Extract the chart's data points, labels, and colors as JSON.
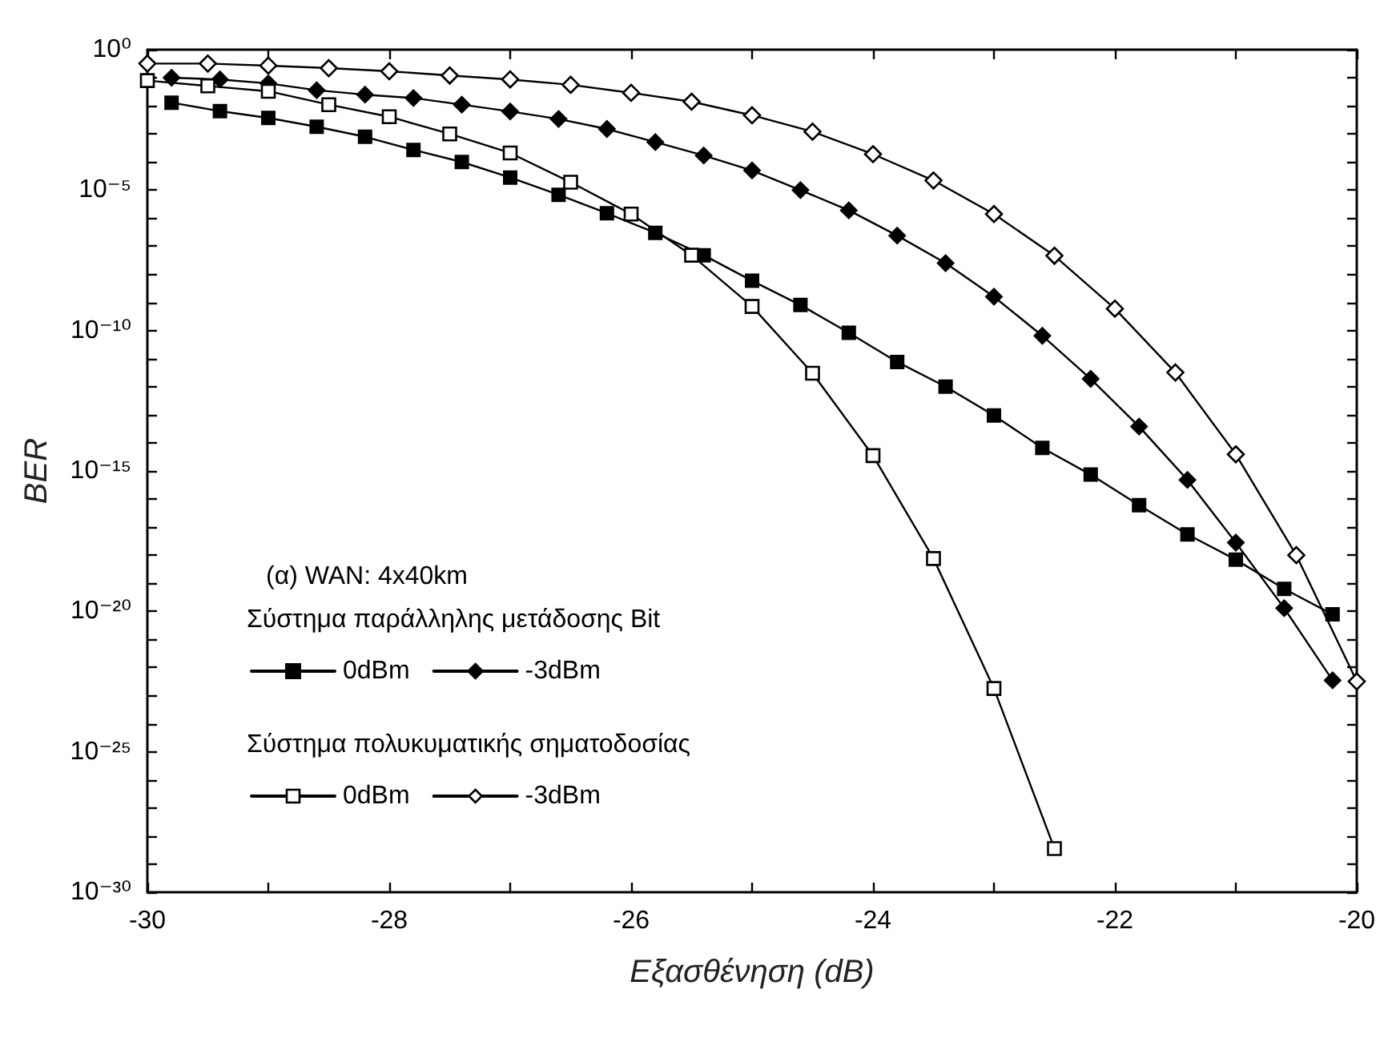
{
  "chart_data": {
    "type": "line",
    "xlabel": "Εξασθένηση (dB)",
    "ylabel": "BER",
    "annotations": [
      "(α) WAN: 4x40km",
      "Σύστημα παράλληλης μετάδοσης Bit",
      "Σύστημα πολυκυματικής σηματοδοσίας"
    ],
    "log": "y",
    "grid": false,
    "legend": "bottom left",
    "line_style": "solid",
    "xlim": [
      -30,
      -20
    ],
    "xticks": [
      -30,
      {
        "value": -29,
        "label": null
      },
      -28,
      {
        "value": -27,
        "label": null
      },
      -26,
      {
        "value": -25,
        "label": null
      },
      -24,
      {
        "value": -23,
        "label": null
      },
      -22,
      {
        "value": -21,
        "label": null
      },
      -20
    ],
    "ylim": [
      1e-30,
      1
    ],
    "yticks": [
      {
        "value": 1e-30,
        "label": "10⁻³⁰"
      },
      {
        "value": 1e-29,
        "label": null
      },
      {
        "value": 1e-28,
        "label": null
      },
      {
        "value": 1e-27,
        "label": null
      },
      {
        "value": 1e-26,
        "label": null
      },
      {
        "value": 1e-25,
        "label": "10⁻²⁵"
      },
      {
        "value": 1e-24,
        "label": null
      },
      {
        "value": 1e-23,
        "label": null
      },
      {
        "value": 1e-22,
        "label": null
      },
      {
        "value": 1e-21,
        "label": null
      },
      {
        "value": 1e-20,
        "label": "10⁻²⁰"
      },
      {
        "value": 1e-19,
        "label": null
      },
      {
        "value": 1e-18,
        "label": null
      },
      {
        "value": 1e-17,
        "label": null
      },
      {
        "value": 1e-16,
        "label": null
      },
      {
        "value": 1e-15,
        "label": "10⁻¹⁵"
      },
      {
        "value": 1e-14,
        "label": null
      },
      {
        "value": 1e-13,
        "label": null
      },
      {
        "value": 1e-12,
        "label": null
      },
      {
        "value": 1e-11,
        "label": null
      },
      {
        "value": 1e-10,
        "label": "10⁻¹⁰"
      },
      {
        "value": 1e-09,
        "label": null
      },
      {
        "value": 1e-08,
        "label": null
      },
      {
        "value": 1e-07,
        "label": null
      },
      {
        "value": 1e-06,
        "label": null
      },
      {
        "value": 1e-05,
        "label": "10⁻⁵"
      },
      {
        "value": 0.0001,
        "label": null
      },
      {
        "value": 0.001,
        "label": null
      },
      {
        "value": 0.01,
        "label": null
      },
      {
        "value": 0.1,
        "label": null
      },
      {
        "value": 1,
        "label": "10⁰"
      }
    ],
    "series": [
      {
        "name": "0dBm",
        "color": "#000000",
        "marker": "square",
        "x": [
          -29.8,
          -29.4,
          -29.0,
          -28.6,
          -28.2,
          -27.8,
          -27.4,
          -27.0,
          -26.6,
          -26.2,
          -25.8,
          -25.4,
          -25.0,
          -24.6,
          -24.2,
          -23.8,
          -23.4,
          -23.0,
          -22.6,
          -22.2,
          -21.8,
          -21.4,
          -21.0,
          -20.6,
          -20.2
        ],
        "values": [
          0.013,
          0.0065,
          0.0037,
          0.0018,
          0.00079,
          0.00027,
          0.0001,
          2.8e-05,
          6.8e-06,
          1.5e-06,
          3e-07,
          4.8e-08,
          5.9e-09,
          8.1e-10,
          8.3e-11,
          7.6e-12,
          1e-12,
          9.5e-14,
          6.6e-15,
          7.4e-16,
          6e-17,
          5.5e-18,
          6.9e-19,
          6.3e-20,
          7.8e-21
        ]
      },
      {
        "name": "-3dBm",
        "color": "#000000",
        "marker": "diamond",
        "x": [
          -29.8,
          -29.4,
          -29.0,
          -28.6,
          -28.2,
          -27.8,
          -27.4,
          -27.0,
          -26.6,
          -26.2,
          -25.8,
          -25.4,
          -25.0,
          -24.6,
          -24.2,
          -23.8,
          -23.4,
          -23.0,
          -22.6,
          -22.2,
          -21.8,
          -21.4,
          -21.0,
          -20.6,
          -20.2
        ],
        "values": [
          0.1,
          0.087,
          0.063,
          0.036,
          0.025,
          0.019,
          0.011,
          0.0063,
          0.0034,
          0.0015,
          0.00051,
          0.00017,
          5e-05,
          1e-05,
          1.9e-06,
          2.4e-07,
          2.5e-08,
          1.6e-09,
          6.5e-11,
          1.9e-12,
          3.8e-14,
          4.8e-16,
          2.8e-18,
          1.3e-20,
          3.5e-23
        ]
      },
      {
        "name": "0dBm",
        "color": "#000000",
        "marker": "square-open",
        "x": [
          -30.0,
          -29.5,
          -29.0,
          -28.5,
          -28.0,
          -27.5,
          -27.0,
          -26.5,
          -26.0,
          -25.5,
          -25.0,
          -24.5,
          -24.0,
          -23.5,
          -23.0,
          -22.5
        ],
        "values": [
          0.079,
          0.051,
          0.033,
          0.011,
          0.0041,
          0.001,
          0.00021,
          1.9e-05,
          1.4e-06,
          4.8e-08,
          7.2e-10,
          3e-12,
          3.5e-15,
          7.6e-19,
          1.8e-23,
          3.6e-29
        ]
      },
      {
        "name": "-3dBm",
        "color": "#000000",
        "marker": "diamond-open",
        "x": [
          -30.0,
          -29.5,
          -29.0,
          -28.5,
          -28.0,
          -27.5,
          -27.0,
          -26.5,
          -26.0,
          -25.5,
          -25.0,
          -24.5,
          -24.0,
          -23.5,
          -23.0,
          -22.5,
          -22.0,
          -21.5,
          -21.0,
          -20.5,
          -20.0
        ],
        "values": [
          0.32,
          0.32,
          0.27,
          0.22,
          0.17,
          0.12,
          0.087,
          0.056,
          0.029,
          0.014,
          0.0046,
          0.0012,
          0.00019,
          2.2e-05,
          1.4e-06,
          4.6e-08,
          6e-10,
          3.2e-12,
          3.9e-15,
          1e-18,
          3.2e-23
        ]
      }
    ]
  }
}
